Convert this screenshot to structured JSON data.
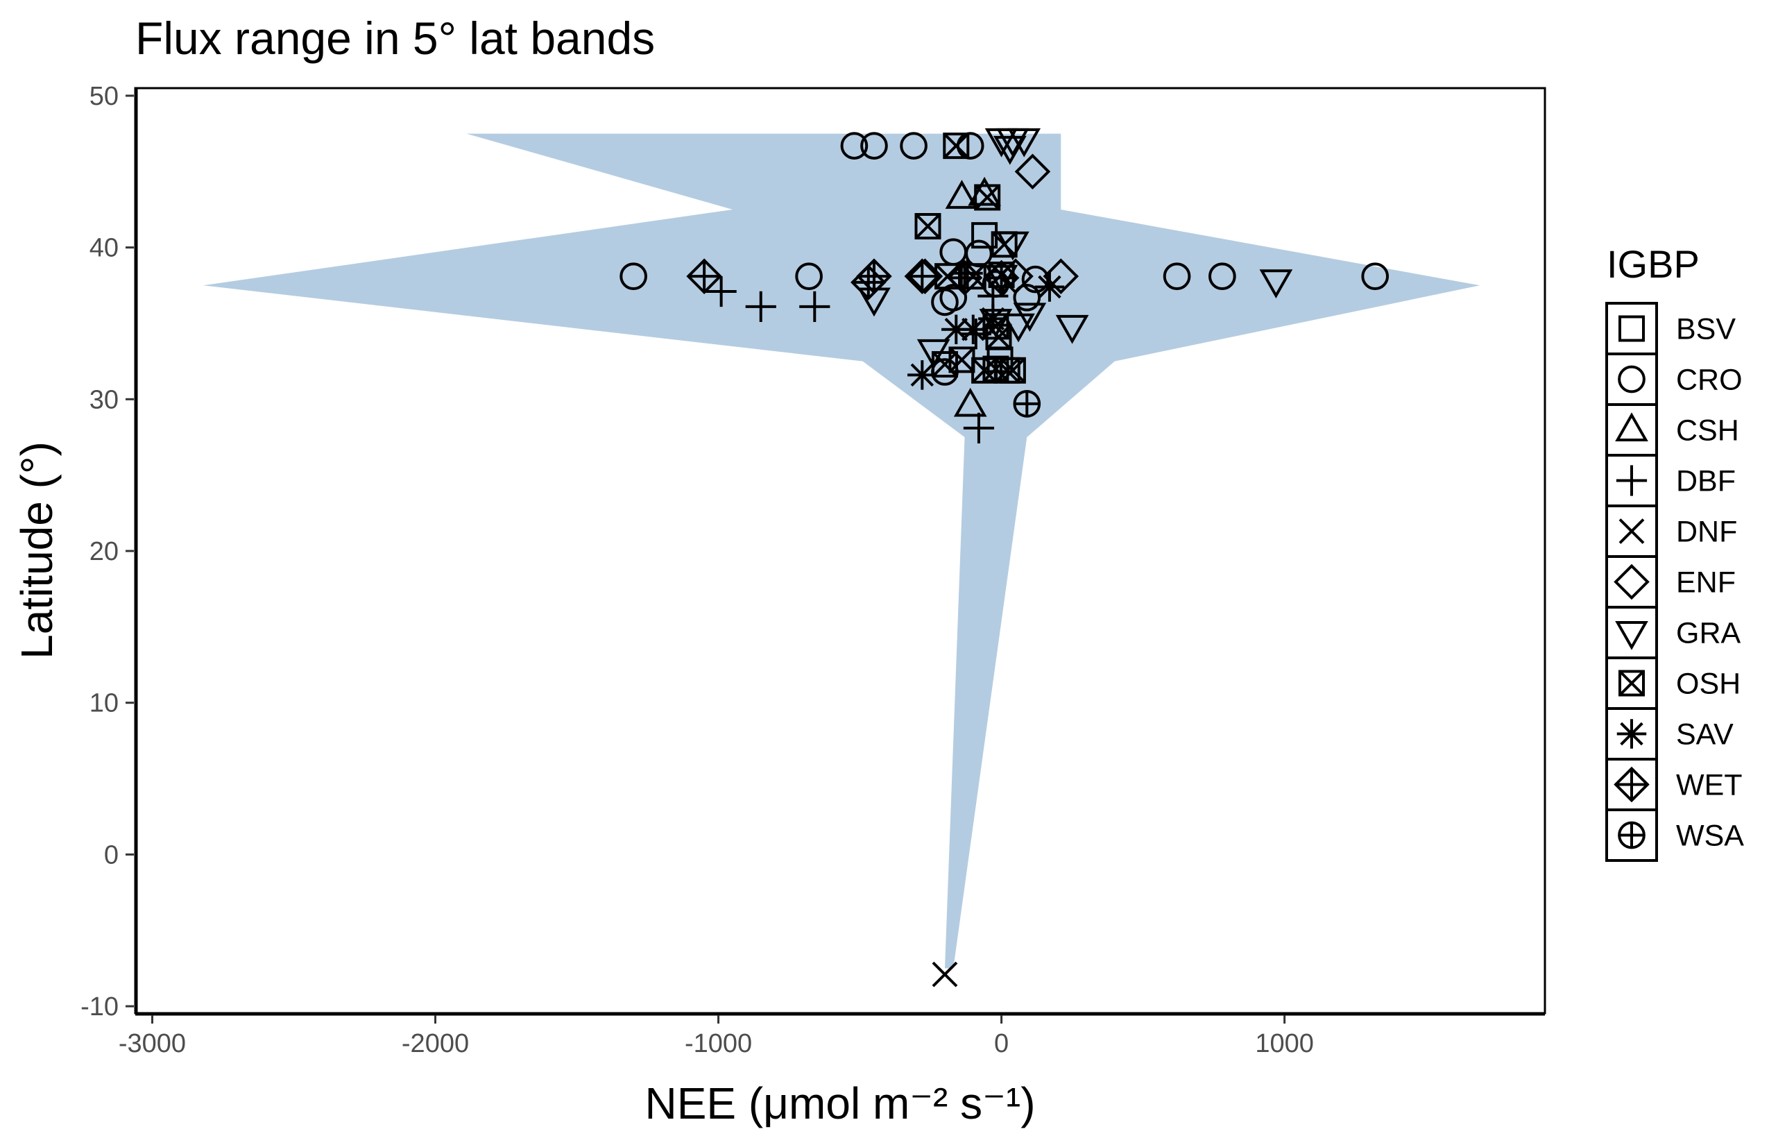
{
  "chart_data": {
    "type": "scatter",
    "title": "Flux range in 5° lat bands",
    "xlabel": "NEE (μmol m⁻² s⁻¹)",
    "ylabel": "Latitude (°)",
    "xlim": [
      -3060,
      1920
    ],
    "ylim": [
      -10.5,
      50.5
    ],
    "x_ticks": [
      -3000,
      -2000,
      -1000,
      0,
      1000
    ],
    "y_ticks": [
      -10,
      0,
      10,
      20,
      30,
      40,
      50
    ],
    "x_tick_labels": [
      "-3000",
      "-2000",
      "-1000",
      "0",
      "1000"
    ],
    "y_tick_labels": [
      "-10",
      "0",
      "10",
      "20",
      "30",
      "40",
      "50"
    ],
    "grid": false,
    "legend": {
      "title": "IGBP",
      "placement": "right",
      "entries": [
        {
          "label": "BSV",
          "shape": "square"
        },
        {
          "label": "CRO",
          "shape": "circle"
        },
        {
          "label": "CSH",
          "shape": "triangle-up"
        },
        {
          "label": "DBF",
          "shape": "plus"
        },
        {
          "label": "DNF",
          "shape": "cross"
        },
        {
          "label": "ENF",
          "shape": "diamond"
        },
        {
          "label": "GRA",
          "shape": "triangle-down"
        },
        {
          "label": "OSH",
          "shape": "square-cross"
        },
        {
          "label": "SAV",
          "shape": "asterisk"
        },
        {
          "label": "WET",
          "shape": "diamond-plus"
        },
        {
          "label": "WSA",
          "shape": "circle-plus"
        }
      ]
    },
    "range_band": {
      "color": "#b4cce1",
      "lat": [
        -7.5,
        27.5,
        32.5,
        37.5,
        42.5,
        47.5
      ],
      "min": [
        -200,
        -130,
        -490,
        -2820,
        -950,
        -1890
      ],
      "max": [
        -170,
        90,
        400,
        1690,
        210,
        210
      ]
    },
    "series": [
      {
        "igbp": "BSV",
        "points": [
          [
            -60,
            40.8
          ],
          [
            -5,
            32.6
          ]
        ]
      },
      {
        "igbp": "CRO",
        "points": [
          [
            -520,
            46.7
          ],
          [
            -450,
            46.7
          ],
          [
            -310,
            46.7
          ],
          [
            -110,
            46.7
          ],
          [
            -1300,
            38.1
          ],
          [
            -680,
            38.1
          ],
          [
            620,
            38.1
          ],
          [
            780,
            38.1
          ],
          [
            1320,
            38.1
          ],
          [
            -170,
            39.7
          ],
          [
            -80,
            39.6
          ],
          [
            -200,
            36.4
          ],
          [
            -170,
            36.7
          ],
          [
            90,
            36.7
          ],
          [
            -200,
            31.8
          ],
          [
            -20,
            37.6
          ],
          [
            120,
            37.9
          ]
        ]
      },
      {
        "igbp": "CSH",
        "points": [
          [
            -140,
            43.3
          ],
          [
            -60,
            43.5
          ],
          [
            -110,
            29.6
          ]
        ]
      },
      {
        "igbp": "DBF",
        "points": [
          [
            -990,
            37.1
          ],
          [
            -850,
            36.1
          ],
          [
            -660,
            36.1
          ],
          [
            -80,
            28.1
          ],
          [
            -90,
            34.3
          ],
          [
            -30,
            36.8
          ],
          [
            -120,
            38.3
          ]
        ]
      },
      {
        "igbp": "DNF",
        "points": [
          [
            -200,
            -7.9
          ]
        ]
      },
      {
        "igbp": "ENF",
        "points": [
          [
            110,
            45.0
          ],
          [
            -270,
            38.1
          ],
          [
            50,
            38.1
          ],
          [
            210,
            38.1
          ]
        ]
      },
      {
        "igbp": "GRA",
        "points": [
          [
            0,
            47.1
          ],
          [
            40,
            47.1
          ],
          [
            80,
            47.1
          ],
          [
            30,
            46.6
          ],
          [
            970,
            37.8
          ],
          [
            -450,
            36.6
          ],
          [
            250,
            34.8
          ],
          [
            -240,
            33.2
          ],
          [
            100,
            35.6
          ],
          [
            0,
            38.1
          ],
          [
            40,
            40.3
          ],
          [
            -20,
            35.2
          ],
          [
            60,
            34.9
          ]
        ]
      },
      {
        "igbp": "OSH",
        "points": [
          [
            -160,
            46.7
          ],
          [
            -50,
            43.3
          ],
          [
            -260,
            41.4
          ],
          [
            10,
            40.2
          ],
          [
            -190,
            38.1
          ],
          [
            -140,
            32.6
          ],
          [
            -200,
            32.3
          ],
          [
            -20,
            32.0
          ],
          [
            20,
            31.9
          ],
          [
            40,
            31.9
          ],
          [
            -60,
            31.9
          ],
          [
            -100,
            38.1
          ],
          [
            0,
            38.2
          ],
          [
            -20,
            34.8
          ],
          [
            -10,
            34.1
          ]
        ]
      },
      {
        "igbp": "SAV",
        "points": [
          [
            -280,
            31.6
          ],
          [
            -160,
            34.6
          ],
          [
            170,
            37.4
          ],
          [
            -30,
            35.3
          ],
          [
            -100,
            34.6
          ]
        ]
      },
      {
        "igbp": "WET",
        "points": [
          [
            -1050,
            38.1
          ],
          [
            -470,
            37.7
          ],
          [
            -450,
            38.1
          ],
          [
            -280,
            38.1
          ],
          [
            -130,
            38.0
          ],
          [
            0,
            38.0
          ]
        ]
      },
      {
        "igbp": "WSA",
        "points": [
          [
            90,
            29.7
          ]
        ]
      }
    ]
  }
}
